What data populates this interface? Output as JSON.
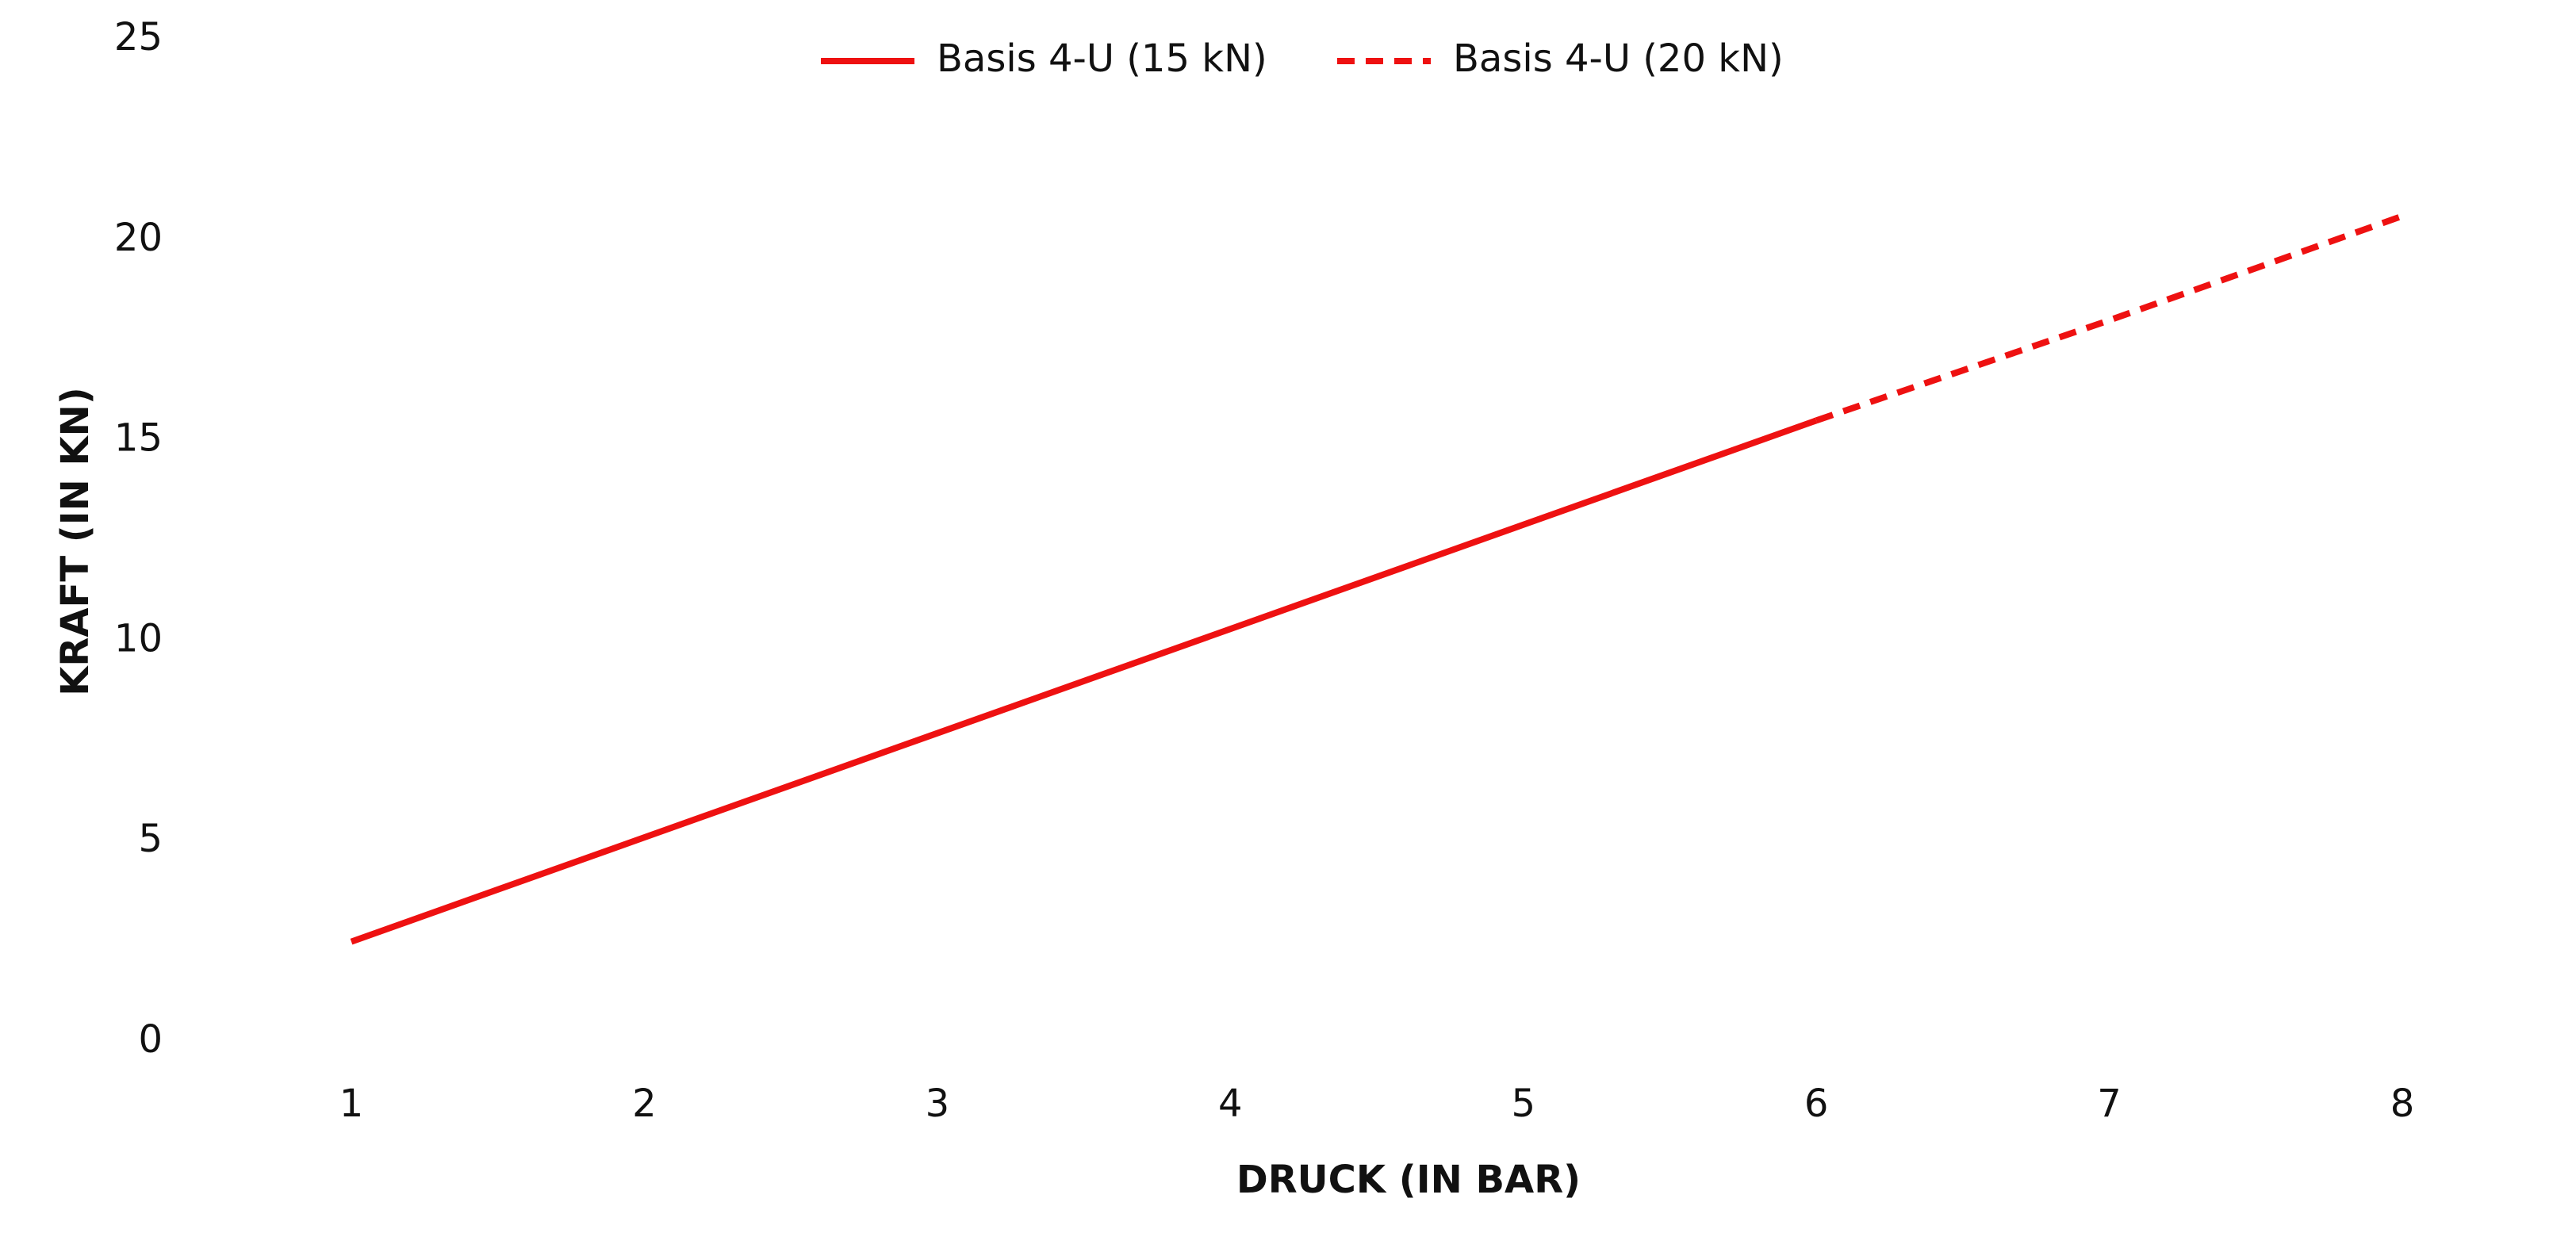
{
  "chart_data": {
    "type": "line",
    "x_label": "DRUCK (IN BAR)",
    "y_label": "KRAFT (IN KN)",
    "x": [
      1,
      2,
      3,
      4,
      5,
      6,
      7,
      8
    ],
    "xlim": [
      1,
      8
    ],
    "xticks": [
      1,
      2,
      3,
      4,
      5,
      6,
      7,
      8
    ],
    "ylim": [
      0,
      25
    ],
    "yticks": [
      0,
      5,
      10,
      15,
      20,
      25
    ],
    "grid": false,
    "legend": "top",
    "series": [
      {
        "name": "Basis 4-U (15 kN)",
        "color": "#ee1111",
        "line_style": "solid",
        "values": [
          2.5,
          5.1,
          7.7,
          10.3,
          12.9,
          15.5,
          null,
          null
        ]
      },
      {
        "name": "Basis 4-U (20 kN)",
        "color": "#ee1111",
        "line_style": "dashed",
        "values": [
          null,
          null,
          null,
          null,
          null,
          15.5,
          18.0,
          20.6
        ]
      }
    ]
  }
}
